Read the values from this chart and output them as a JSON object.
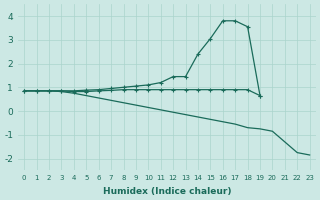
{
  "xlabel": "Humidex (Indice chaleur)",
  "bg_color": "#cce8e4",
  "grid_color": "#aad4cc",
  "line_color": "#1a6b5a",
  "xlim": [
    -0.5,
    23.5
  ],
  "ylim": [
    -2.5,
    4.5
  ],
  "x_ticks": [
    0,
    1,
    2,
    3,
    4,
    5,
    6,
    7,
    8,
    9,
    10,
    11,
    12,
    13,
    14,
    15,
    16,
    17,
    18,
    19,
    20,
    21,
    22,
    23
  ],
  "y_ticks": [
    -2,
    -1,
    0,
    1,
    2,
    3,
    4
  ],
  "curve_peak_x": [
    0,
    1,
    2,
    3,
    4,
    5,
    6,
    7,
    8,
    9,
    10,
    11,
    12,
    13,
    14,
    15,
    16,
    17,
    18,
    19
  ],
  "curve_peak_y": [
    0.85,
    0.85,
    0.85,
    0.85,
    0.85,
    0.88,
    0.9,
    0.95,
    1.0,
    1.05,
    1.1,
    1.2,
    1.45,
    1.45,
    2.4,
    3.05,
    3.8,
    3.8,
    3.55,
    0.65
  ],
  "curve_flat_x": [
    0,
    1,
    2,
    3,
    4,
    5,
    6,
    7,
    8,
    9,
    10,
    11,
    12,
    13,
    14,
    15,
    16,
    17,
    18,
    19
  ],
  "curve_flat_y": [
    0.85,
    0.85,
    0.85,
    0.85,
    0.82,
    0.82,
    0.85,
    0.87,
    0.9,
    0.9,
    0.9,
    0.9,
    0.9,
    0.9,
    0.9,
    0.9,
    0.9,
    0.9,
    0.9,
    0.65
  ],
  "curve_low_x": [
    0,
    1,
    2,
    3,
    4,
    5,
    6,
    7,
    8,
    9,
    10,
    11,
    12,
    13,
    14,
    15,
    16,
    17,
    18,
    19,
    20,
    21,
    22,
    23
  ],
  "curve_low_y": [
    0.85,
    0.85,
    0.85,
    0.82,
    0.75,
    0.65,
    0.55,
    0.45,
    0.35,
    0.25,
    0.15,
    0.05,
    -0.05,
    -0.15,
    -0.25,
    -0.35,
    -0.45,
    -0.55,
    -0.7,
    -0.75,
    -0.85,
    -1.3,
    -1.75,
    -1.85
  ]
}
